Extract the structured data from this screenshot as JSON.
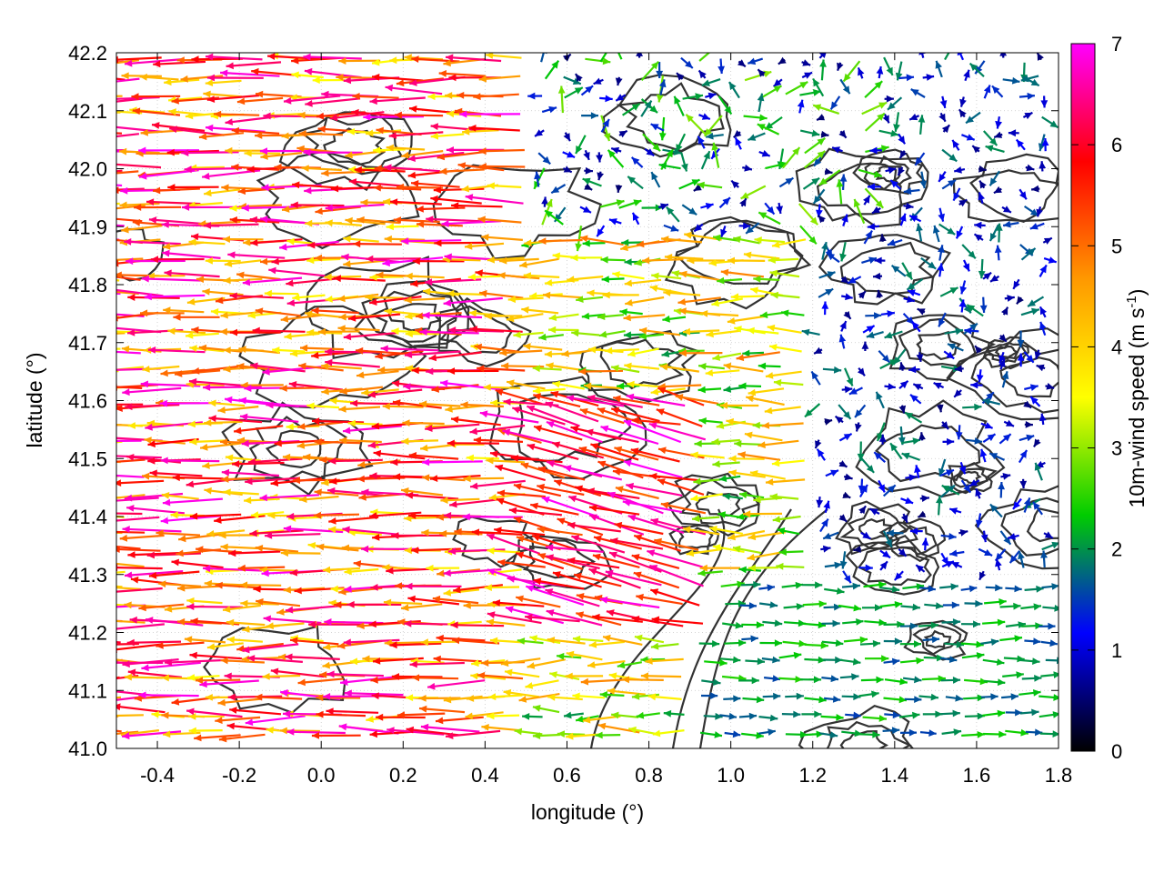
{
  "chart_data": {
    "type": "vector-field",
    "xlabel": "longitude (°)",
    "ylabel": "latitude (°)",
    "xlim": [
      -0.5,
      1.8
    ],
    "ylim": [
      41.0,
      42.2
    ],
    "xticks": [
      "-0.4",
      "-0.2",
      "0.0",
      "0.2",
      "0.4",
      "0.6",
      "0.8",
      "1.0",
      "1.2",
      "1.4",
      "1.6",
      "1.8"
    ],
    "xtick_values": [
      -0.4,
      -0.2,
      0.0,
      0.2,
      0.4,
      0.6,
      0.8,
      1.0,
      1.2,
      1.4,
      1.6,
      1.8
    ],
    "yticks": [
      "41.0",
      "41.1",
      "41.2",
      "41.3",
      "41.4",
      "41.5",
      "41.6",
      "41.7",
      "41.8",
      "41.9",
      "42.0",
      "42.1",
      "42.2"
    ],
    "ytick_values": [
      41.0,
      41.1,
      41.2,
      41.3,
      41.4,
      41.5,
      41.6,
      41.7,
      41.8,
      41.9,
      42.0,
      42.1,
      42.2
    ],
    "grid": true,
    "colorbar": {
      "label_prefix": "10m-wind speed (m s",
      "label_sup": "-1",
      "label_suffix": ")",
      "range": [
        0,
        7
      ],
      "ticks": [
        "0",
        "1",
        "2",
        "3",
        "4",
        "5",
        "6",
        "7"
      ],
      "tick_values": [
        0,
        1,
        2,
        3,
        4,
        5,
        6,
        7
      ],
      "colormap": [
        "#000000",
        "#0000ff",
        "#00cc00",
        "#ffff00",
        "#ff9900",
        "#ff0000",
        "#ff00ff"
      ]
    },
    "vector_regions": [
      {
        "region": "west-central",
        "lon": [
          -0.5,
          0.5
        ],
        "lat": [
          41.0,
          42.2
        ],
        "direction": "westward",
        "speed_range": [
          3.5,
          7
        ]
      },
      {
        "region": "central-south",
        "lon": [
          0.3,
          0.9
        ],
        "lat": [
          41.2,
          41.6
        ],
        "direction": "west-northwest",
        "speed_range": [
          5,
          7
        ]
      },
      {
        "region": "north-central",
        "lon": [
          0.3,
          1.3
        ],
        "lat": [
          41.9,
          42.2
        ],
        "direction": "variable",
        "speed_range": [
          0.5,
          3
        ]
      },
      {
        "region": "southeast",
        "lon": [
          0.9,
          1.8
        ],
        "lat": [
          41.0,
          41.3
        ],
        "direction": "eastward",
        "speed_range": [
          1.5,
          2.5
        ]
      },
      {
        "region": "east-central",
        "lon": [
          1.2,
          1.8
        ],
        "lat": [
          41.5,
          42.0
        ],
        "direction": "variable",
        "speed_range": [
          0.5,
          2
        ]
      }
    ],
    "contours": "terrain elevation contours (dark gray)"
  }
}
